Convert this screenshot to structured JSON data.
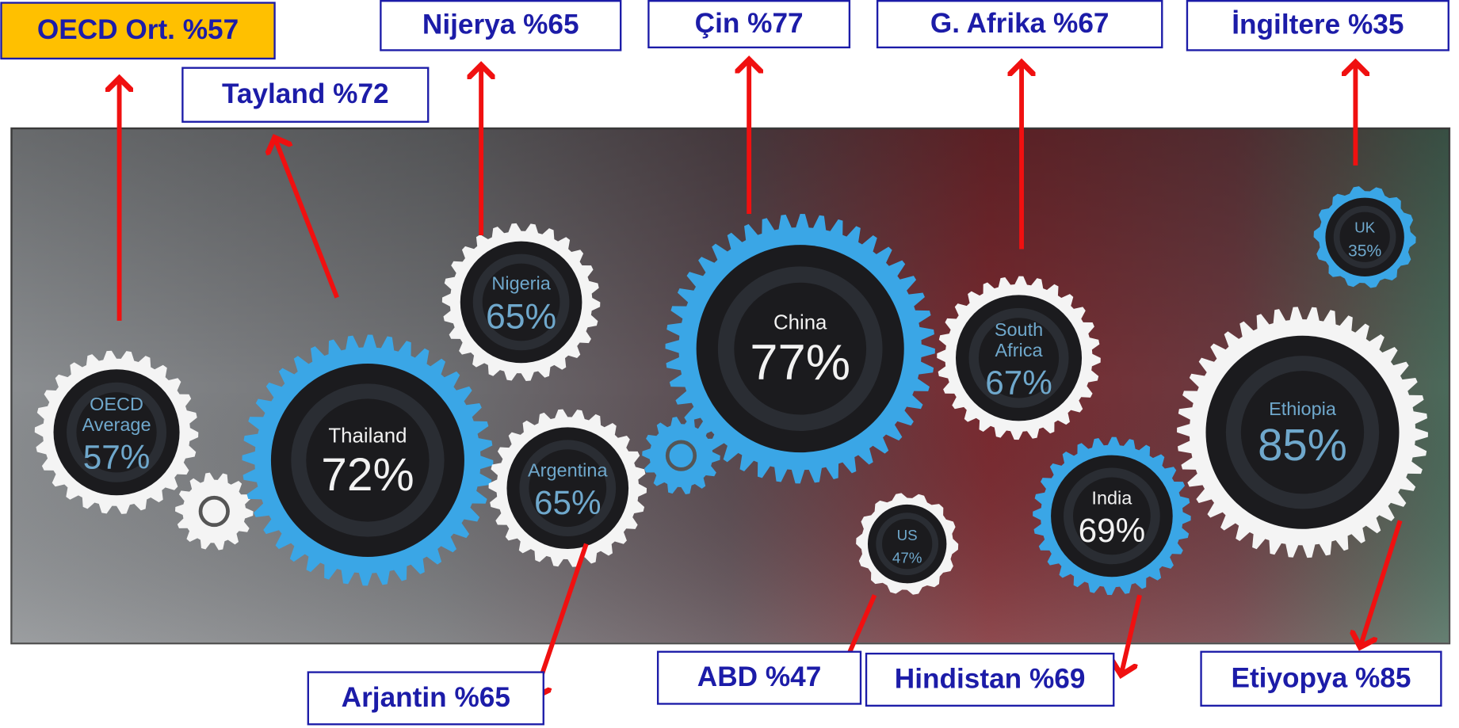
{
  "labels": [
    {
      "text": "OECD Ort. %57"
    },
    {
      "text": "Tayland %72"
    },
    {
      "text": "Nijerya %65"
    },
    {
      "text": "Çin %77"
    },
    {
      "text": "G. Afrika %67"
    },
    {
      "text": "İngiltere %35"
    },
    {
      "text": "Arjantin %65"
    },
    {
      "text": "ABD %47"
    },
    {
      "text": "Hindistan %69"
    },
    {
      "text": "Etiyopya %85"
    }
  ],
  "gears": [
    {
      "name_lines": [
        "OECD",
        "Average"
      ],
      "value": "57%"
    },
    {
      "name_lines": [
        "Thailand"
      ],
      "value": "72%"
    },
    {
      "name_lines": [
        "Nigeria"
      ],
      "value": "65%"
    },
    {
      "name_lines": [
        "Argentina"
      ],
      "value": "65%"
    },
    {
      "name_lines": [
        "China"
      ],
      "value": "77%"
    },
    {
      "name_lines": [
        "US"
      ],
      "value": "47%"
    },
    {
      "name_lines": [
        "South",
        "Africa"
      ],
      "value": "67%"
    },
    {
      "name_lines": [
        "India"
      ],
      "value": "69%"
    },
    {
      "name_lines": [
        "Ethiopia"
      ],
      "value": "85%"
    },
    {
      "name_lines": [
        "UK"
      ],
      "value": "35%"
    }
  ]
}
